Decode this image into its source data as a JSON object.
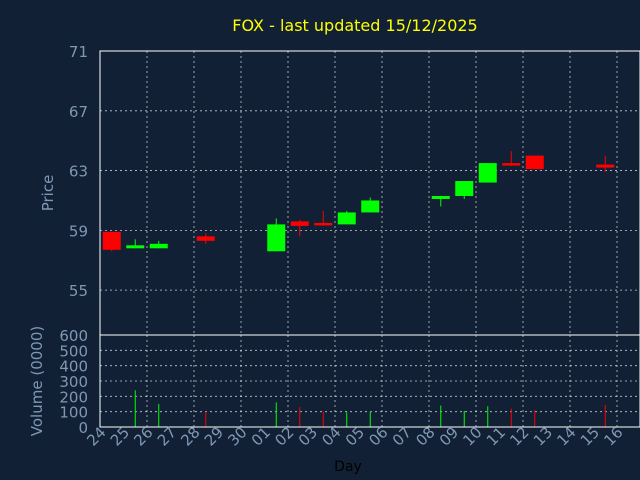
{
  "chart_data": [
    {
      "type": "candlestick",
      "title": "FOX - last updated 15/12/2025",
      "xlabel": "",
      "ylabel": "Price",
      "ylim": [
        52,
        71
      ],
      "yticks": [
        55,
        59,
        63,
        67,
        71
      ],
      "grid": true,
      "categories": [
        "24",
        "25",
        "26",
        "27",
        "28",
        "29",
        "30",
        "01",
        "02",
        "03",
        "04",
        "05",
        "06",
        "07",
        "08",
        "09",
        "10",
        "11",
        "12",
        "13",
        "14",
        "15",
        "16"
      ],
      "candles": [
        {
          "day": "24",
          "open": 58.9,
          "high": 58.9,
          "low": 57.6,
          "close": 57.7
        },
        {
          "day": "25",
          "open": 57.8,
          "high": 58.4,
          "low": 57.8,
          "close": 58.0
        },
        {
          "day": "26",
          "open": 57.8,
          "high": 58.3,
          "low": 57.8,
          "close": 58.1
        },
        {
          "day": "28",
          "open": 58.6,
          "high": 58.8,
          "low": 58.1,
          "close": 58.3
        },
        {
          "day": "01",
          "open": 57.6,
          "high": 59.8,
          "low": 57.6,
          "close": 59.4
        },
        {
          "day": "02",
          "open": 59.6,
          "high": 59.7,
          "low": 58.6,
          "close": 59.3
        },
        {
          "day": "03",
          "open": 59.5,
          "high": 60.3,
          "low": 59.3,
          "close": 59.4
        },
        {
          "day": "04",
          "open": 59.4,
          "high": 60.3,
          "low": 59.4,
          "close": 60.2
        },
        {
          "day": "05",
          "open": 60.2,
          "high": 61.2,
          "low": 60.2,
          "close": 61.0
        },
        {
          "day": "08",
          "open": 61.1,
          "high": 61.3,
          "low": 60.6,
          "close": 61.3
        },
        {
          "day": "09",
          "open": 61.3,
          "high": 62.3,
          "low": 61.1,
          "close": 62.3
        },
        {
          "day": "10",
          "open": 62.2,
          "high": 63.5,
          "low": 62.2,
          "close": 63.5
        },
        {
          "day": "11",
          "open": 63.5,
          "high": 64.3,
          "low": 63.3,
          "close": 63.4
        },
        {
          "day": "12",
          "open": 64.0,
          "high": 64.0,
          "low": 63.1,
          "close": 63.1
        },
        {
          "day": "15",
          "open": 63.4,
          "high": 64.0,
          "low": 62.9,
          "close": 63.2
        }
      ]
    },
    {
      "type": "bar",
      "title": "",
      "xlabel": "Day",
      "ylabel": "Volume (0000)",
      "ylim": [
        0,
        600
      ],
      "yticks": [
        0,
        100,
        200,
        300,
        400,
        500,
        600
      ],
      "grid": true,
      "categories": [
        "24",
        "25",
        "26",
        "27",
        "28",
        "29",
        "30",
        "01",
        "02",
        "03",
        "04",
        "05",
        "06",
        "07",
        "08",
        "09",
        "10",
        "11",
        "12",
        "13",
        "14",
        "15",
        "16"
      ],
      "bars": [
        {
          "day": "25",
          "value": 240,
          "color": "#00ff00"
        },
        {
          "day": "26",
          "value": 150,
          "color": "#00ff00"
        },
        {
          "day": "28",
          "value": 100,
          "color": "#ff0000"
        },
        {
          "day": "01",
          "value": 160,
          "color": "#00ff00"
        },
        {
          "day": "02",
          "value": 130,
          "color": "#ff0000"
        },
        {
          "day": "03",
          "value": 100,
          "color": "#ff0000"
        },
        {
          "day": "04",
          "value": 95,
          "color": "#00ff00"
        },
        {
          "day": "05",
          "value": 100,
          "color": "#00ff00"
        },
        {
          "day": "08",
          "value": 140,
          "color": "#00ff00"
        },
        {
          "day": "09",
          "value": 105,
          "color": "#00ff00"
        },
        {
          "day": "10",
          "value": 135,
          "color": "#00ff00"
        },
        {
          "day": "11",
          "value": 120,
          "color": "#ff0000"
        },
        {
          "day": "12",
          "value": 110,
          "color": "#ff0000"
        },
        {
          "day": "15",
          "value": 145,
          "color": "#ff0000"
        }
      ]
    }
  ],
  "colors": {
    "background": "#112035",
    "grid": "#ffffff",
    "axis_text": "#7f98b3",
    "title": "#ffff00",
    "up": "#00ff00",
    "down": "#ff0000"
  }
}
